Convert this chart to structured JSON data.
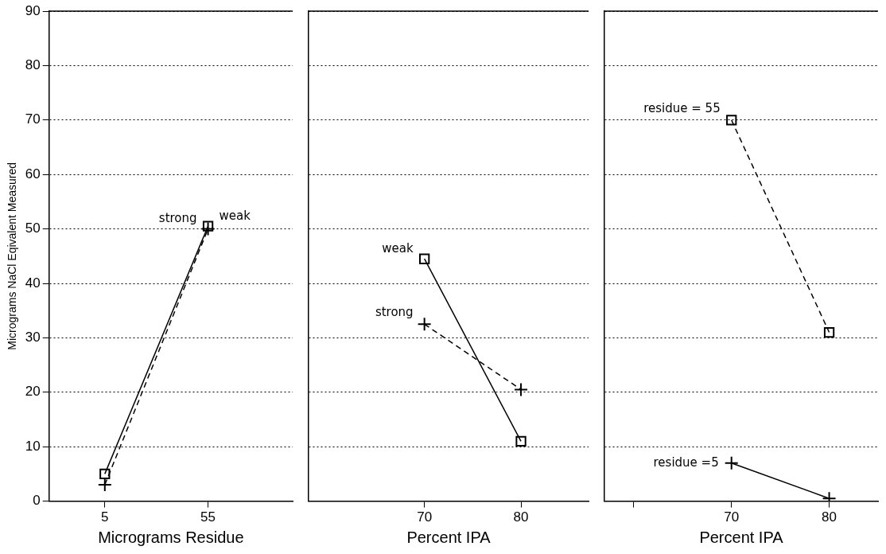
{
  "chart_data": [
    {
      "type": "line",
      "xlabel": "Micrograms Residue",
      "ylabel": "Micrograms NaCl Eqivalent Measured",
      "xlim": [
        -22,
        96
      ],
      "xticks": [
        5,
        55
      ],
      "ylim": [
        0,
        90
      ],
      "yticks": [
        0,
        10,
        20,
        30,
        40,
        50,
        60,
        70,
        80,
        90
      ],
      "grid": "y",
      "legend": false,
      "series": [
        {
          "name": "weak",
          "color": "#000000",
          "x": [
            5,
            55
          ],
          "values": [
            5,
            50.5
          ],
          "marker": "square",
          "line_style": "solid"
        },
        {
          "name": "strong",
          "color": "#000000",
          "x": [
            5,
            55
          ],
          "values": [
            3,
            50
          ],
          "marker": "cross",
          "line_style": "dashed"
        }
      ]
    },
    {
      "type": "line",
      "xlabel": "Percent IPA",
      "xlim": [
        58,
        87
      ],
      "xticks": [
        70,
        80
      ],
      "ylim": [
        0,
        90
      ],
      "yticks": [
        0,
        10,
        20,
        30,
        40,
        50,
        60,
        70,
        80,
        90
      ],
      "grid": "y",
      "legend": false,
      "tick_labels": "x",
      "series": [
        {
          "name": "weak",
          "color": "#000000",
          "x": [
            70,
            80
          ],
          "values": [
            44.5,
            11
          ],
          "marker": "square",
          "line_style": "solid"
        },
        {
          "name": "strong",
          "color": "#000000",
          "x": [
            70,
            80
          ],
          "values": [
            32.5,
            20.5
          ],
          "marker": "cross",
          "line_style": "dashed"
        }
      ]
    },
    {
      "type": "line",
      "xlabel": "Percent IPA",
      "xlim": [
        57,
        85
      ],
      "xticks": [
        {
          "value": 60,
          "label": null
        },
        70,
        80
      ],
      "ylim": [
        0,
        90
      ],
      "yticks": [
        0,
        10,
        20,
        30,
        40,
        50,
        60,
        70,
        80,
        90
      ],
      "grid": "y",
      "legend": false,
      "tick_labels": "x",
      "series": [
        {
          "name": "residue = 55",
          "color": "#000000",
          "x": [
            70,
            80
          ],
          "values": [
            70,
            31
          ],
          "marker": "square",
          "line_style": "dashed"
        },
        {
          "name": "residue =5",
          "color": "#000000",
          "x": [
            70,
            80
          ],
          "values": [
            7,
            0.5
          ],
          "marker": "cross",
          "line_style": "solid"
        }
      ]
    }
  ]
}
